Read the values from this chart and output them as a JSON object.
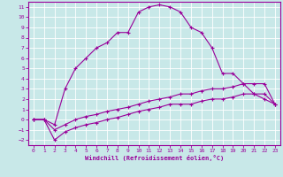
{
  "xlabel": "Windchill (Refroidissement éolien,°C)",
  "background_color": "#c8e8e8",
  "grid_color": "#ffffff",
  "line_color": "#990099",
  "xlim": [
    -0.5,
    23.5
  ],
  "ylim": [
    -2.5,
    11.5
  ],
  "xticks": [
    0,
    1,
    2,
    3,
    4,
    5,
    6,
    7,
    8,
    9,
    10,
    11,
    12,
    13,
    14,
    15,
    16,
    17,
    18,
    19,
    20,
    21,
    22,
    23
  ],
  "yticks": [
    -2,
    -1,
    0,
    1,
    2,
    3,
    4,
    5,
    6,
    7,
    8,
    9,
    10,
    11
  ],
  "line1_x": [
    0,
    1,
    2,
    3,
    4,
    5,
    6,
    7,
    8,
    9,
    10,
    11,
    12,
    13,
    14,
    15,
    16,
    17,
    18,
    19,
    20,
    21,
    22,
    23
  ],
  "line1_y": [
    0.0,
    0.0,
    -0.5,
    3.0,
    5.0,
    6.0,
    7.0,
    7.5,
    8.5,
    8.5,
    10.5,
    11.0,
    11.2,
    11.0,
    10.5,
    9.0,
    8.5,
    7.0,
    4.5,
    4.5,
    3.5,
    2.5,
    2.0,
    1.5
  ],
  "line2_x": [
    0,
    1,
    2,
    3,
    4,
    5,
    6,
    7,
    8,
    9,
    10,
    11,
    12,
    13,
    14,
    15,
    16,
    17,
    18,
    19,
    20,
    21,
    22,
    23
  ],
  "line2_y": [
    0.0,
    0.0,
    -1.0,
    -0.5,
    0.0,
    0.3,
    0.5,
    0.8,
    1.0,
    1.2,
    1.5,
    1.8,
    2.0,
    2.2,
    2.5,
    2.5,
    2.8,
    3.0,
    3.0,
    3.2,
    3.5,
    3.5,
    3.5,
    1.5
  ],
  "line3_x": [
    0,
    1,
    2,
    3,
    4,
    5,
    6,
    7,
    8,
    9,
    10,
    11,
    12,
    13,
    14,
    15,
    16,
    17,
    18,
    19,
    20,
    21,
    22,
    23
  ],
  "line3_y": [
    0.0,
    0.0,
    -2.0,
    -1.2,
    -0.8,
    -0.5,
    -0.3,
    0.0,
    0.2,
    0.5,
    0.8,
    1.0,
    1.2,
    1.5,
    1.5,
    1.5,
    1.8,
    2.0,
    2.0,
    2.2,
    2.5,
    2.5,
    2.5,
    1.5
  ]
}
